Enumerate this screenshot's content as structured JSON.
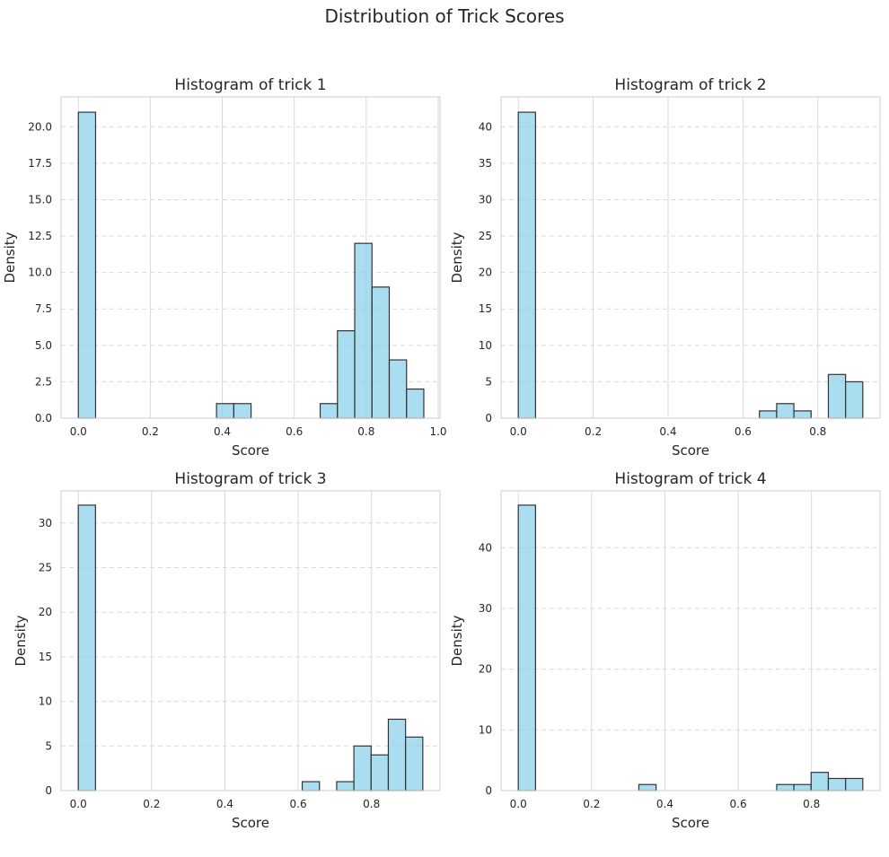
{
  "suptitle": "Distribution of Trick Scores",
  "style": {
    "bar_fill": "#87CEEB",
    "bar_edge": "#333333",
    "grid": "#d9d9d9",
    "spine": "#cccccc"
  },
  "chart_data": [
    {
      "type": "bar",
      "title": "Histogram of trick 1",
      "xlabel": "Score",
      "ylabel": "Density",
      "xlim": [
        -0.048,
        1.005
      ],
      "ylim": [
        0,
        22.05
      ],
      "xticks": [
        0.0,
        0.2,
        0.4,
        0.6,
        0.8,
        1.0
      ],
      "xtick_labels": [
        "0.0",
        "0.2",
        "0.4",
        "0.6",
        "0.8",
        "1.0"
      ],
      "yticks": [
        0,
        2.5,
        5,
        7.5,
        10,
        12.5,
        15,
        17.5,
        20
      ],
      "ytick_labels": [
        "0.0",
        "2.5",
        "5.0",
        "7.5",
        "10.0",
        "12.5",
        "15.0",
        "17.5",
        "20.0"
      ],
      "bin_width": 0.048,
      "bins": [
        {
          "x": 0.0,
          "value": 21
        },
        {
          "x": 0.384,
          "value": 1
        },
        {
          "x": 0.432,
          "value": 1
        },
        {
          "x": 0.672,
          "value": 1
        },
        {
          "x": 0.72,
          "value": 6
        },
        {
          "x": 0.768,
          "value": 12
        },
        {
          "x": 0.816,
          "value": 9
        },
        {
          "x": 0.864,
          "value": 4
        },
        {
          "x": 0.912,
          "value": 2
        }
      ],
      "grid": true
    },
    {
      "type": "bar",
      "title": "Histogram of trick 2",
      "xlabel": "Score",
      "ylabel": "Density",
      "xlim": [
        -0.046,
        0.966
      ],
      "ylim": [
        0,
        44.1
      ],
      "xticks": [
        0.0,
        0.2,
        0.4,
        0.6,
        0.8
      ],
      "xtick_labels": [
        "0.0",
        "0.2",
        "0.4",
        "0.6",
        "0.8"
      ],
      "yticks": [
        0,
        5,
        10,
        15,
        20,
        25,
        30,
        35,
        40
      ],
      "ytick_labels": [
        "0",
        "5",
        "10",
        "15",
        "20",
        "25",
        "30",
        "35",
        "40"
      ],
      "bin_width": 0.046,
      "bins": [
        {
          "x": 0.0,
          "value": 42
        },
        {
          "x": 0.644,
          "value": 1
        },
        {
          "x": 0.69,
          "value": 2
        },
        {
          "x": 0.736,
          "value": 1
        },
        {
          "x": 0.828,
          "value": 6
        },
        {
          "x": 0.874,
          "value": 5
        }
      ],
      "grid": true
    },
    {
      "type": "bar",
      "title": "Histogram of trick 3",
      "xlabel": "Score",
      "ylabel": "Density",
      "xlim": [
        -0.047,
        0.987
      ],
      "ylim": [
        0,
        33.6
      ],
      "xticks": [
        0.0,
        0.2,
        0.4,
        0.6,
        0.8
      ],
      "xtick_labels": [
        "0.0",
        "0.2",
        "0.4",
        "0.6",
        "0.8"
      ],
      "yticks": [
        0,
        5,
        10,
        15,
        20,
        25,
        30
      ],
      "ytick_labels": [
        "0",
        "5",
        "10",
        "15",
        "20",
        "25",
        "30"
      ],
      "bin_width": 0.047,
      "bins": [
        {
          "x": 0.0,
          "value": 32
        },
        {
          "x": 0.611,
          "value": 1
        },
        {
          "x": 0.705,
          "value": 1
        },
        {
          "x": 0.752,
          "value": 5
        },
        {
          "x": 0.799,
          "value": 4
        },
        {
          "x": 0.846,
          "value": 8
        },
        {
          "x": 0.893,
          "value": 6
        }
      ],
      "grid": true
    },
    {
      "type": "bar",
      "title": "Histogram of trick 4",
      "xlabel": "Score",
      "ylabel": "Density",
      "xlim": [
        -0.047,
        0.987
      ],
      "ylim": [
        0,
        49.35
      ],
      "xticks": [
        0.0,
        0.2,
        0.4,
        0.6,
        0.8
      ],
      "xtick_labels": [
        "0.0",
        "0.2",
        "0.4",
        "0.6",
        "0.8"
      ],
      "yticks": [
        0,
        10,
        20,
        30,
        40
      ],
      "ytick_labels": [
        "0",
        "10",
        "20",
        "30",
        "40"
      ],
      "bin_width": 0.047,
      "bins": [
        {
          "x": 0.0,
          "value": 47
        },
        {
          "x": 0.329,
          "value": 1
        },
        {
          "x": 0.705,
          "value": 1
        },
        {
          "x": 0.752,
          "value": 1
        },
        {
          "x": 0.799,
          "value": 3
        },
        {
          "x": 0.846,
          "value": 2
        },
        {
          "x": 0.893,
          "value": 2
        }
      ],
      "grid": true
    }
  ]
}
